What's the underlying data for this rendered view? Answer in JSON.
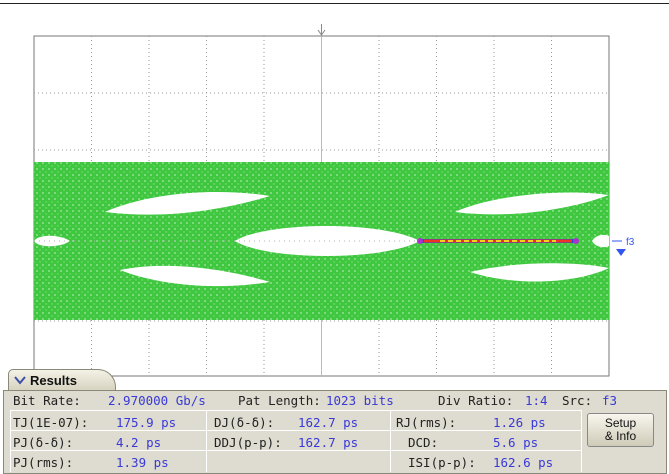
{
  "marker": {
    "label": "f3"
  },
  "results": {
    "tab_label": "Results",
    "bit_rate_label": "Bit Rate:",
    "bit_rate_value": "2.970000 Gb/s",
    "pat_length_label": "Pat Length:",
    "pat_length_value": "1023 bits",
    "div_ratio_label": "Div Ratio:",
    "div_ratio_value": "1:4",
    "src_label": "Src:",
    "src_value": "f3",
    "tj_label": "TJ(1E-07):",
    "tj_value": "175.9 ps",
    "dj_label": "DJ(δ-δ):",
    "dj_value": "162.7 ps",
    "rj_rms_label": "RJ(rms):",
    "rj_rms_value": "1.26 ps",
    "pj_dd_label": "PJ(δ-δ):",
    "pj_dd_value": "4.2 ps",
    "ddj_label": "DDJ(p-p):",
    "ddj_value": "162.7 ps",
    "dcd_label": "DCD:",
    "dcd_value": "5.6 ps",
    "pj_rms_label": "PJ(rms):",
    "pj_rms_value": "1.39 ps",
    "isi_label": "ISI(p-p):",
    "isi_value": "162.6 ps",
    "setup_label_1": "Setup",
    "setup_label_2": "& Info"
  },
  "colors": {
    "eye": "#33cc33",
    "grid": "#9a9a9a",
    "marker": "#3355ee"
  }
}
